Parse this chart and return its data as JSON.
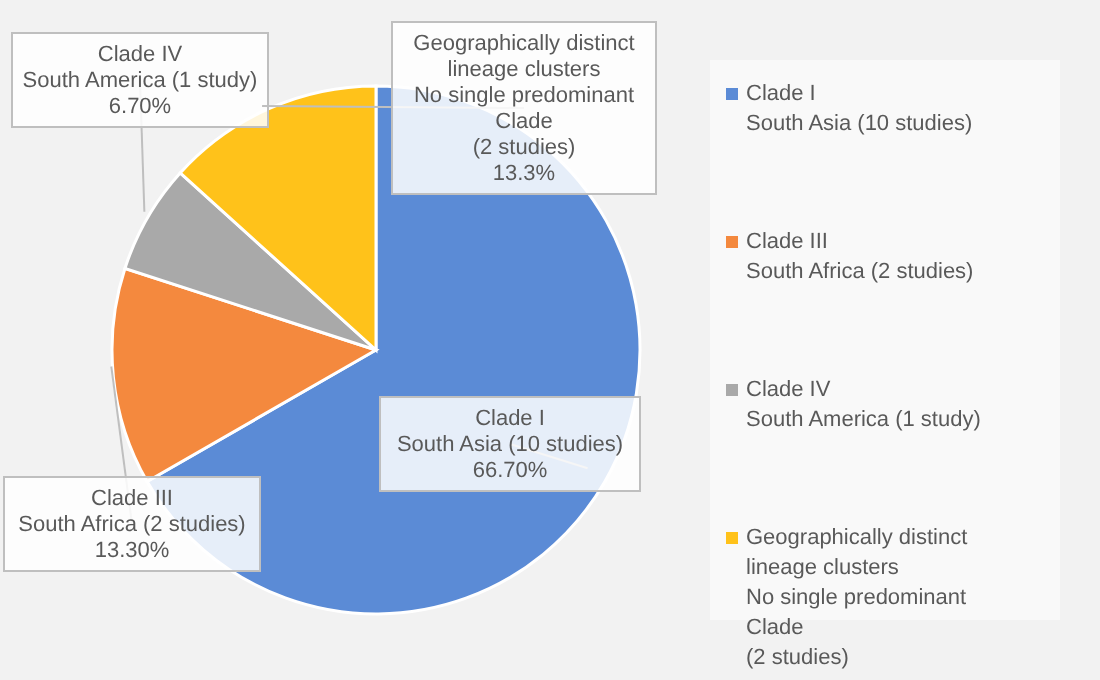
{
  "chart_data": {
    "type": "pie",
    "categories": [
      "Clade I\nSouth Asia (10 studies)",
      "Clade III\nSouth Africa (2 studies)",
      "Clade IV\nSouth America (1 study)",
      "Geographically distinct\nlineage clusters\nNo single predominant\nClade\n(2 studies)"
    ],
    "values": [
      66.7,
      13.3,
      6.7,
      13.3
    ],
    "value_labels": [
      "66.70%",
      "13.30%",
      "6.70%",
      "13.3%"
    ],
    "colors": [
      "#5b8bd6",
      "#f4893e",
      "#a9a9a9",
      "#ffc21a"
    ],
    "legend": "right"
  }
}
